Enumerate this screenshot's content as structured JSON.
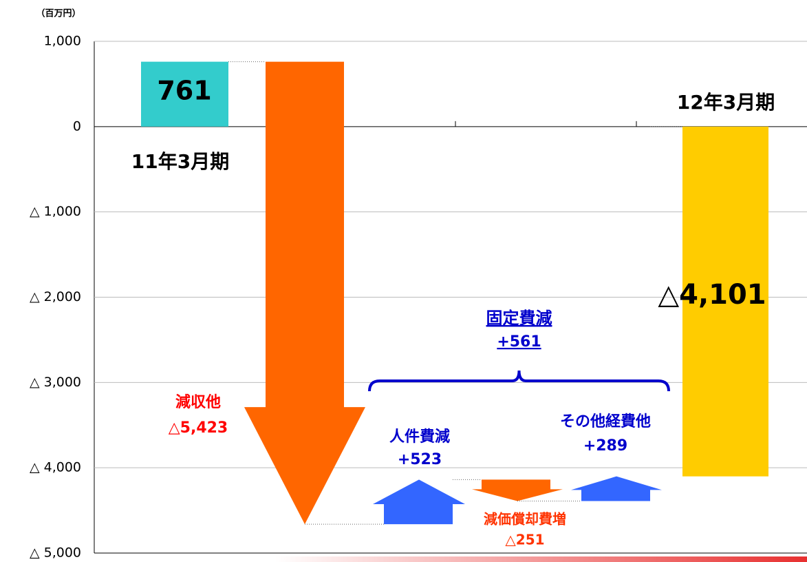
{
  "chart_data": {
    "type": "waterfall",
    "y_axis_label": "（百万円）",
    "categories": [
      "11年3月期",
      "減収他",
      "人件費減",
      "減価償却費増",
      "その他経費他",
      "12年3月期"
    ],
    "kinds": [
      "total",
      "delta",
      "delta",
      "delta",
      "delta",
      "total"
    ],
    "values": [
      761,
      -5423,
      523,
      -251,
      289,
      -4101
    ],
    "value_labels": [
      "761",
      "△5,423",
      "+523",
      "△251",
      "+289",
      "△4,101"
    ],
    "colors": [
      "#33cccc",
      "#ff6600",
      "#3366ff",
      "#ff6600",
      "#3366ff",
      "#ffcc00"
    ],
    "annotations": [
      {
        "text": "固定費減",
        "value": 561,
        "value_label": "+561"
      }
    ],
    "ylim": [
      -5000,
      1000
    ],
    "yticks": [
      {
        "value": 1000,
        "label": "1,000"
      },
      0,
      {
        "value": -1000,
        "label": "△ 1,000"
      },
      {
        "value": -2000,
        "label": "△ 2,000"
      },
      {
        "value": -3000,
        "label": "△ 3,000"
      },
      {
        "value": -4000,
        "label": "△ 4,000"
      },
      {
        "value": -5000,
        "label": "△ 5,000"
      }
    ],
    "grid": true
  }
}
